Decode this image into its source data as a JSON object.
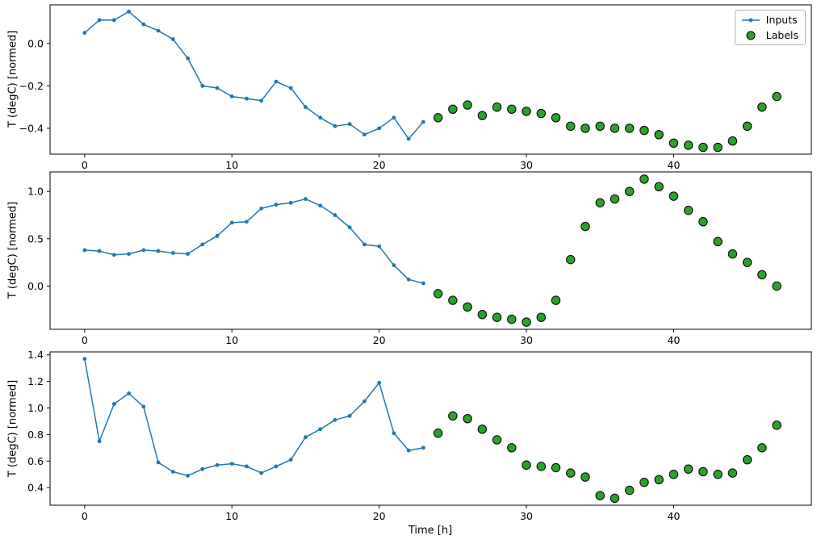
{
  "figure": {
    "background": "#ffffff",
    "title": ""
  },
  "legend": {
    "items": [
      {
        "label": "Inputs",
        "color": "#1f77b4",
        "marker": "line-dot"
      },
      {
        "label": "Labels",
        "color": "#2ca02c",
        "edge": "#000000",
        "marker": "circle"
      }
    ]
  },
  "chart_data": [
    {
      "type": "line",
      "title": "",
      "xlabel": "",
      "ylabel": "T (degC) [normed]",
      "xlim": [
        -2.35,
        49.35
      ],
      "ylim": [
        -0.522,
        0.182
      ],
      "xticks": [
        0,
        10,
        20,
        30,
        40
      ],
      "yticks": [
        0.0,
        -0.2,
        -0.4
      ],
      "grid": false,
      "legend_position": "upper right",
      "series": [
        {
          "name": "Inputs",
          "style": "line",
          "color": "#1f77b4",
          "x": [
            0,
            1,
            2,
            3,
            4,
            5,
            6,
            7,
            8,
            9,
            10,
            11,
            12,
            13,
            14,
            15,
            16,
            17,
            18,
            19,
            20,
            21,
            22,
            23
          ],
          "values": [
            0.05,
            0.11,
            0.11,
            0.15,
            0.09,
            0.06,
            0.02,
            -0.07,
            -0.2,
            -0.21,
            -0.25,
            -0.26,
            -0.27,
            -0.18,
            -0.21,
            -0.3,
            -0.35,
            -0.39,
            -0.38,
            -0.43,
            -0.4,
            -0.35,
            -0.45,
            -0.37
          ]
        },
        {
          "name": "Labels",
          "style": "scatter",
          "color": "#2ca02c",
          "edge": "#000000",
          "x": [
            24,
            25,
            26,
            27,
            28,
            29,
            30,
            31,
            32,
            33,
            34,
            35,
            36,
            37,
            38,
            39,
            40,
            41,
            42,
            43,
            44,
            45,
            46,
            47
          ],
          "values": [
            -0.35,
            -0.31,
            -0.29,
            -0.34,
            -0.3,
            -0.31,
            -0.32,
            -0.33,
            -0.35,
            -0.39,
            -0.4,
            -0.39,
            -0.4,
            -0.4,
            -0.41,
            -0.43,
            -0.47,
            -0.48,
            -0.49,
            -0.49,
            -0.46,
            -0.39,
            -0.3,
            -0.25
          ]
        }
      ]
    },
    {
      "type": "line",
      "title": "",
      "xlabel": "",
      "ylabel": "T (degC) [normed]",
      "xlim": [
        -2.35,
        49.35
      ],
      "ylim": [
        -0.456,
        1.206
      ],
      "xticks": [
        0,
        10,
        20,
        30,
        40
      ],
      "yticks": [
        1.0,
        0.5,
        0.0
      ],
      "grid": false,
      "series": [
        {
          "name": "Inputs",
          "style": "line",
          "color": "#1f77b4",
          "x": [
            0,
            1,
            2,
            3,
            4,
            5,
            6,
            7,
            8,
            9,
            10,
            11,
            12,
            13,
            14,
            15,
            16,
            17,
            18,
            19,
            20,
            21,
            22,
            23
          ],
          "values": [
            0.38,
            0.37,
            0.33,
            0.34,
            0.38,
            0.37,
            0.35,
            0.34,
            0.44,
            0.53,
            0.67,
            0.68,
            0.82,
            0.86,
            0.88,
            0.92,
            0.85,
            0.75,
            0.62,
            0.44,
            0.42,
            0.22,
            0.07,
            0.03
          ]
        },
        {
          "name": "Labels",
          "style": "scatter",
          "color": "#2ca02c",
          "edge": "#000000",
          "x": [
            24,
            25,
            26,
            27,
            28,
            29,
            30,
            31,
            32,
            33,
            34,
            35,
            36,
            37,
            38,
            39,
            40,
            41,
            42,
            43,
            44,
            45,
            46,
            47
          ],
          "values": [
            -0.08,
            -0.15,
            -0.22,
            -0.3,
            -0.33,
            -0.35,
            -0.38,
            -0.33,
            -0.15,
            0.28,
            0.63,
            0.88,
            0.92,
            1.0,
            1.13,
            1.05,
            0.95,
            0.8,
            0.68,
            0.47,
            0.34,
            0.25,
            0.12,
            0.0
          ]
        }
      ]
    },
    {
      "type": "line",
      "title": "",
      "xlabel": "Time [h]",
      "ylabel": "T (degC) [normed]",
      "xlim": [
        -2.35,
        49.35
      ],
      "ylim": [
        0.2675,
        1.4225
      ],
      "xticks": [
        0,
        10,
        20,
        30,
        40
      ],
      "yticks": [
        1.4,
        1.2,
        1.0,
        0.8,
        0.6,
        0.4
      ],
      "grid": false,
      "series": [
        {
          "name": "Inputs",
          "style": "line",
          "color": "#1f77b4",
          "x": [
            0,
            1,
            2,
            3,
            4,
            5,
            6,
            7,
            8,
            9,
            10,
            11,
            12,
            13,
            14,
            15,
            16,
            17,
            18,
            19,
            20,
            21,
            22,
            23
          ],
          "values": [
            1.37,
            0.75,
            1.03,
            1.11,
            1.01,
            0.59,
            0.52,
            0.49,
            0.54,
            0.57,
            0.58,
            0.56,
            0.51,
            0.56,
            0.61,
            0.78,
            0.84,
            0.91,
            0.94,
            1.05,
            1.19,
            0.81,
            0.68,
            0.7
          ]
        },
        {
          "name": "Labels",
          "style": "scatter",
          "color": "#2ca02c",
          "edge": "#000000",
          "x": [
            24,
            25,
            26,
            27,
            28,
            29,
            30,
            31,
            32,
            33,
            34,
            35,
            36,
            37,
            38,
            39,
            40,
            41,
            42,
            43,
            44,
            45,
            46,
            47
          ],
          "values": [
            0.81,
            0.94,
            0.92,
            0.84,
            0.76,
            0.7,
            0.57,
            0.56,
            0.55,
            0.51,
            0.48,
            0.34,
            0.32,
            0.38,
            0.44,
            0.46,
            0.5,
            0.54,
            0.52,
            0.5,
            0.51,
            0.61,
            0.7,
            0.87
          ]
        }
      ]
    }
  ]
}
